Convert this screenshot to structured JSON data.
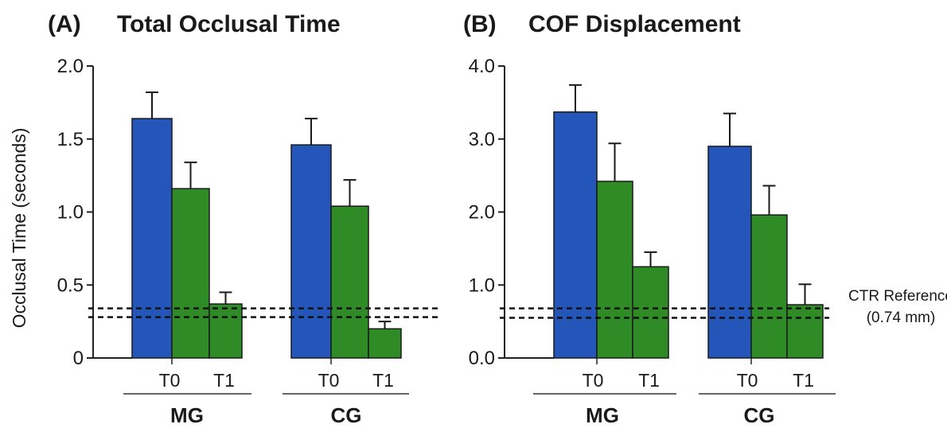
{
  "chart_data": [
    {
      "type": "bar",
      "panel_label": "(A)",
      "title": "Total Occlusal Time",
      "ylabel": "Occlusal Time (seconds)",
      "ylim": [
        0,
        2.0
      ],
      "yticks": [
        "0",
        "0.5",
        "1.0",
        "1.5",
        "2.0"
      ],
      "tick_values": [
        0,
        0.5,
        1.0,
        1.5,
        2.0
      ],
      "groups": [
        "MG",
        "CG"
      ],
      "category_labels": [
        "T0",
        "T1"
      ],
      "bars": [
        {
          "group": "MG",
          "index": 0,
          "value": 1.64,
          "error": 0.18,
          "color": "#2455b8"
        },
        {
          "group": "MG",
          "index": 1,
          "value": 1.16,
          "error": 0.18,
          "color": "#2e8b26"
        },
        {
          "group": "MG",
          "index": 2,
          "value": 0.37,
          "error": 0.08,
          "color": "#2e8b26"
        },
        {
          "group": "CG",
          "index": 0,
          "value": 1.46,
          "error": 0.18,
          "color": "#2455b8"
        },
        {
          "group": "CG",
          "index": 1,
          "value": 1.04,
          "error": 0.18,
          "color": "#2e8b26"
        },
        {
          "group": "CG",
          "index": 2,
          "value": 0.2,
          "error": 0.05,
          "color": "#2e8b26"
        }
      ],
      "reference_lines": [
        0.34,
        0.28
      ],
      "reference_label": ""
    },
    {
      "type": "bar",
      "panel_label": "(B)",
      "title": "COF Displacement",
      "ylabel": "",
      "ylim": [
        0,
        4.0
      ],
      "yticks": [
        "0.0",
        "1.0",
        "2.0",
        "3.0",
        "4.0"
      ],
      "tick_values": [
        0,
        1.0,
        2.0,
        3.0,
        4.0
      ],
      "groups": [
        "MG",
        "CG"
      ],
      "category_labels": [
        "T0",
        "T1"
      ],
      "bars": [
        {
          "group": "MG",
          "index": 0,
          "value": 3.37,
          "error": 0.37,
          "color": "#2455b8"
        },
        {
          "group": "MG",
          "index": 1,
          "value": 2.42,
          "error": 0.52,
          "color": "#2e8b26"
        },
        {
          "group": "MG",
          "index": 2,
          "value": 1.25,
          "error": 0.2,
          "color": "#2e8b26"
        },
        {
          "group": "CG",
          "index": 0,
          "value": 2.9,
          "error": 0.45,
          "color": "#2455b8"
        },
        {
          "group": "CG",
          "index": 1,
          "value": 1.96,
          "error": 0.4,
          "color": "#2e8b26"
        },
        {
          "group": "CG",
          "index": 2,
          "value": 0.73,
          "error": 0.28,
          "color": "#2e8b26"
        }
      ],
      "reference_lines": [
        0.68,
        0.55
      ],
      "reference_label": [
        "CTR Reference",
        "(0.74 mm)"
      ]
    }
  ]
}
